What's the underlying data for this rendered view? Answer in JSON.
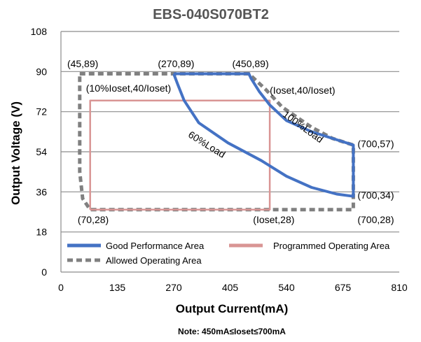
{
  "chart_data": {
    "type": "line",
    "title": "EBS-040S070BT2",
    "xlabel": "Output Current(mA)",
    "ylabel": "Output Voltage (V)",
    "note": "Note:  450mA≤Ioset≤700mA",
    "xlim": [
      0,
      810
    ],
    "ylim": [
      0,
      108
    ],
    "xticks": [
      "0",
      "135",
      "270",
      "405",
      "540",
      "675",
      "810"
    ],
    "yticks": [
      "0",
      "18",
      "36",
      "54",
      "72",
      "90",
      "108"
    ],
    "grid": "horizontal",
    "legend_position": "bottom-left",
    "series": [
      {
        "name": "Good Performance Area",
        "color": "#4472c4",
        "style": "solid",
        "points": [
          [
            270,
            89
          ],
          [
            450,
            89
          ],
          [
            455,
            87
          ],
          [
            475,
            81
          ],
          [
            500,
            75
          ],
          [
            540,
            68
          ],
          [
            600,
            63
          ],
          [
            650,
            60
          ],
          [
            700,
            57
          ],
          [
            700,
            34
          ],
          [
            660,
            35
          ],
          [
            600,
            38
          ],
          [
            540,
            43
          ],
          [
            480,
            50
          ],
          [
            400,
            58
          ],
          [
            330,
            67
          ],
          [
            295,
            77
          ],
          [
            280,
            84
          ],
          [
            270,
            89
          ]
        ]
      },
      {
        "name": "Programmed Operating Area",
        "color": "#d99594",
        "style": "solid",
        "points": [
          [
            70,
            28
          ],
          [
            500,
            28
          ],
          [
            500,
            77
          ],
          [
            70,
            77
          ],
          [
            70,
            28
          ]
        ]
      },
      {
        "name": "Allowed Operating Area",
        "color": "#808080",
        "style": "dashed",
        "points": [
          [
            45,
            89
          ],
          [
            450,
            89
          ],
          [
            490,
            82
          ],
          [
            530,
            74
          ],
          [
            600,
            65
          ],
          [
            650,
            60
          ],
          [
            700,
            57
          ],
          [
            700,
            28
          ],
          [
            70,
            28
          ],
          [
            52,
            33
          ],
          [
            45,
            45
          ],
          [
            45,
            89
          ]
        ]
      }
    ],
    "annotations": [
      {
        "text": "(45,89)",
        "x": 15,
        "y": 92
      },
      {
        "text": "(270,89)",
        "x": 232,
        "y": 92
      },
      {
        "text": "(450,89)",
        "x": 410,
        "y": 92
      },
      {
        "text": "(10%Ioset,40/Ioset)",
        "x": 60,
        "y": 81
      },
      {
        "text": "(Ioset,40/Ioset)",
        "x": 500,
        "y": 80
      },
      {
        "text": "(700,57)",
        "x": 710,
        "y": 56
      },
      {
        "text": "(700,34)",
        "x": 710,
        "y": 33
      },
      {
        "text": "(700,28)",
        "x": 710,
        "y": 22
      },
      {
        "text": "(70,28)",
        "x": 40,
        "y": 22
      },
      {
        "text": "(Ioset,28)",
        "x": 460,
        "y": 22
      }
    ],
    "curve_labels": [
      {
        "text": "60%Load",
        "x": 345,
        "y": 56,
        "angle": 32
      },
      {
        "text": "100%Load",
        "x": 575,
        "y": 64,
        "angle": 36
      }
    ]
  }
}
